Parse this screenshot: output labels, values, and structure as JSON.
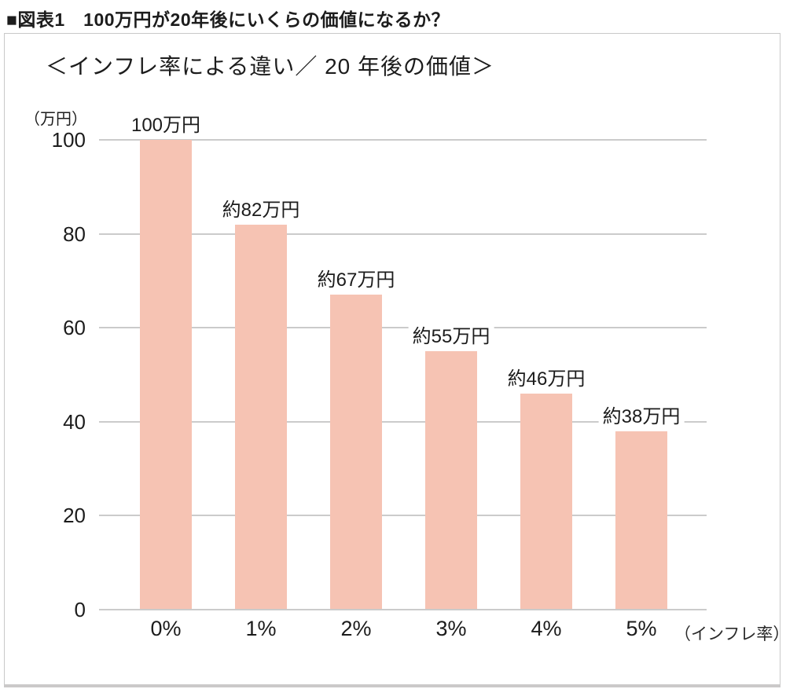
{
  "page": {
    "title": "■図表1　100万円が20年後にいくらの価値になるか？"
  },
  "chart": {
    "subtitle": "＜インフレ率による違い／ 20 年後の価値＞",
    "y_axis_unit": "（万円）",
    "x_axis_unit": "（インフレ率）"
  },
  "chart_data": {
    "type": "bar",
    "title": "100万円が20年後にいくらの価値になるか？",
    "subtitle": "＜インフレ率による違い／ 20 年後の価値＞",
    "categories": [
      "0%",
      "1%",
      "2%",
      "3%",
      "4%",
      "5%"
    ],
    "values": [
      100,
      82,
      67,
      55,
      46,
      38
    ],
    "bar_labels": [
      "100万円",
      "約82万円",
      "約67万円",
      "約55万円",
      "約46万円",
      "約38万円"
    ],
    "xlabel": "（インフレ率）",
    "ylabel": "（万円）",
    "ylim": [
      0,
      100
    ],
    "yticks": [
      0,
      20,
      40,
      60,
      80,
      100
    ],
    "grid": true,
    "legend": false,
    "bar_color": "#f6c3b3",
    "gridline_color": "#cbcbcb",
    "text_color": "#1c1c1c"
  }
}
